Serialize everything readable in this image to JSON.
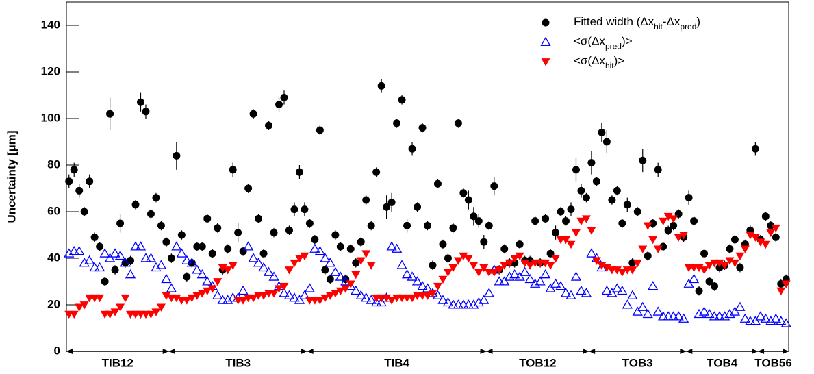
{
  "chart_data": {
    "type": "scatter",
    "y_label": "Uncertainty [μm]",
    "ylim": [
      0,
      150
    ],
    "yticks": [
      0,
      20,
      40,
      60,
      80,
      100,
      120,
      140
    ],
    "xlim": [
      0,
      141
    ],
    "regions": [
      {
        "label": "TIB12",
        "start": 0,
        "end": 20
      },
      {
        "label": "TIB3",
        "start": 20,
        "end": 47
      },
      {
        "label": "TIB4",
        "start": 47,
        "end": 82
      },
      {
        "label": "TOB12",
        "start": 82,
        "end": 102
      },
      {
        "label": "TOB3",
        "start": 102,
        "end": 121
      },
      {
        "label": "TOB4",
        "start": 121,
        "end": 135
      },
      {
        "label": "TOB56",
        "start": 135,
        "end": 141
      }
    ],
    "series": [
      {
        "name": [
          {
            "text": "Fitted width (Δx"
          },
          {
            "text": "hit",
            "sub": true
          },
          {
            "text": "-Δx"
          },
          {
            "text": "pred",
            "sub": true
          },
          {
            "text": ")"
          }
        ],
        "marker": "circle",
        "color": "#000000",
        "values": [
          73,
          78,
          69,
          60,
          73,
          49,
          45,
          30,
          102,
          35,
          55,
          38,
          39,
          63,
          107,
          103,
          59,
          66,
          54,
          47,
          40,
          84,
          50,
          32,
          38,
          45,
          45,
          57,
          42,
          53,
          35,
          44,
          78,
          51,
          43,
          70,
          102,
          57,
          42,
          97,
          51,
          106,
          109,
          52,
          61,
          77,
          61,
          55,
          48,
          95,
          35,
          31,
          50,
          45,
          31,
          44,
          38,
          47,
          65,
          54,
          77,
          114,
          62,
          64,
          98,
          108,
          54,
          87,
          62,
          96,
          54,
          37,
          72,
          46,
          40,
          53,
          98,
          68,
          65,
          58,
          56,
          47,
          54,
          71,
          35,
          44,
          38,
          38,
          46,
          39,
          39,
          56,
          38,
          57,
          42,
          51,
          60,
          56,
          61,
          78,
          69,
          66,
          81,
          73,
          94,
          90,
          65,
          69,
          55,
          63,
          38,
          60,
          82,
          41,
          55,
          78,
          45,
          52,
          54,
          59,
          49,
          66,
          56,
          26,
          42,
          30,
          28,
          36,
          37,
          44,
          48,
          36,
          46,
          52,
          87,
          48,
          58,
          54,
          49,
          29,
          31
        ],
        "errors": [
          3,
          3,
          3,
          2,
          3,
          2,
          2,
          2,
          7,
          2,
          4,
          2,
          2,
          2,
          4,
          3,
          2,
          2,
          2,
          2,
          2,
          6,
          2,
          2,
          2,
          2,
          2,
          2,
          2,
          2,
          2,
          2,
          3,
          4,
          2,
          2,
          2,
          2,
          2,
          2,
          2,
          3,
          3,
          2,
          3,
          3,
          3,
          2,
          2,
          2,
          2,
          2,
          2,
          2,
          2,
          2,
          2,
          2,
          2,
          2,
          2,
          3,
          5,
          4,
          2,
          2,
          3,
          3,
          2,
          2,
          2,
          2,
          2,
          2,
          2,
          2,
          2,
          2,
          4,
          4,
          3,
          3,
          2,
          4,
          2,
          2,
          2,
          2,
          2,
          2,
          2,
          2,
          2,
          2,
          2,
          3,
          2,
          2,
          3,
          5,
          3,
          2,
          5,
          2,
          4,
          5,
          2,
          2,
          2,
          3,
          2,
          2,
          5,
          2,
          2,
          3,
          2,
          2,
          2,
          2,
          2,
          3,
          2,
          2,
          2,
          2,
          2,
          2,
          2,
          2,
          2,
          2,
          2,
          2,
          3,
          2,
          2,
          2,
          2,
          2,
          2
        ]
      },
      {
        "name": [
          {
            "text": "<σ(Δx"
          },
          {
            "text": "pred",
            "sub": true
          },
          {
            "text": ")>"
          }
        ],
        "marker": "triangle-up-open",
        "color": "#0000ff",
        "values": [
          42,
          43,
          43,
          38,
          39,
          36,
          36,
          42,
          40,
          42,
          41,
          38,
          33,
          45,
          45,
          40,
          40,
          36,
          37,
          31,
          27,
          45,
          42,
          39,
          38,
          35,
          33,
          30,
          28,
          24,
          22,
          22,
          23,
          23,
          26,
          45,
          40,
          38,
          36,
          34,
          32,
          28,
          25,
          24,
          23,
          22,
          24,
          27,
          44,
          43,
          40,
          38,
          34,
          32,
          30,
          28,
          26,
          24,
          23,
          22,
          21,
          21,
          23,
          45,
          44,
          37,
          33,
          32,
          30,
          28,
          27,
          25,
          24,
          22,
          21,
          20,
          20,
          20,
          20,
          20,
          21,
          22,
          25,
          35,
          30,
          30,
          32,
          33,
          32,
          34,
          31,
          29,
          30,
          33,
          27,
          29,
          28,
          25,
          24,
          32,
          26,
          25,
          42,
          40,
          36,
          26,
          25,
          27,
          26,
          20,
          24,
          17,
          19,
          16,
          28,
          17,
          15,
          15,
          15,
          15,
          14,
          29,
          31,
          16,
          17,
          16,
          15,
          15,
          15,
          16,
          17,
          19,
          14,
          13,
          13,
          15,
          14,
          13,
          14,
          13,
          12
        ]
      },
      {
        "name": [
          {
            "text": "<σ(Δx"
          },
          {
            "text": "hit",
            "sub": true
          },
          {
            "text": ")>"
          }
        ],
        "marker": "triangle-down",
        "color": "#ff0000",
        "values": [
          16,
          16,
          19,
          20,
          23,
          23,
          23,
          16,
          16,
          17,
          19,
          23,
          16,
          16,
          16,
          16,
          16,
          17,
          19,
          24,
          23,
          23,
          22,
          22,
          23,
          24,
          25,
          26,
          27,
          30,
          36,
          35,
          37,
          22,
          22,
          23,
          23,
          24,
          24,
          25,
          25,
          27,
          28,
          35,
          38,
          40,
          41,
          22,
          22,
          22,
          23,
          24,
          25,
          26,
          27,
          29,
          33,
          39,
          42,
          37,
          23,
          23,
          23,
          22,
          23,
          23,
          23,
          23,
          24,
          24,
          24,
          25,
          28,
          31,
          34,
          36,
          39,
          41,
          40,
          37,
          34,
          36,
          34,
          34,
          35,
          37,
          38,
          40,
          41,
          38,
          37,
          38,
          38,
          38,
          37,
          40,
          48,
          48,
          46,
          51,
          56,
          57,
          52,
          39,
          37,
          36,
          35,
          35,
          34,
          35,
          35,
          38,
          44,
          54,
          48,
          44,
          56,
          58,
          57,
          49,
          50,
          36,
          36,
          36,
          35,
          37,
          38,
          38,
          37,
          39,
          38,
          41,
          44,
          50,
          49,
          47,
          46,
          51,
          53,
          26,
          29
        ]
      }
    ]
  }
}
